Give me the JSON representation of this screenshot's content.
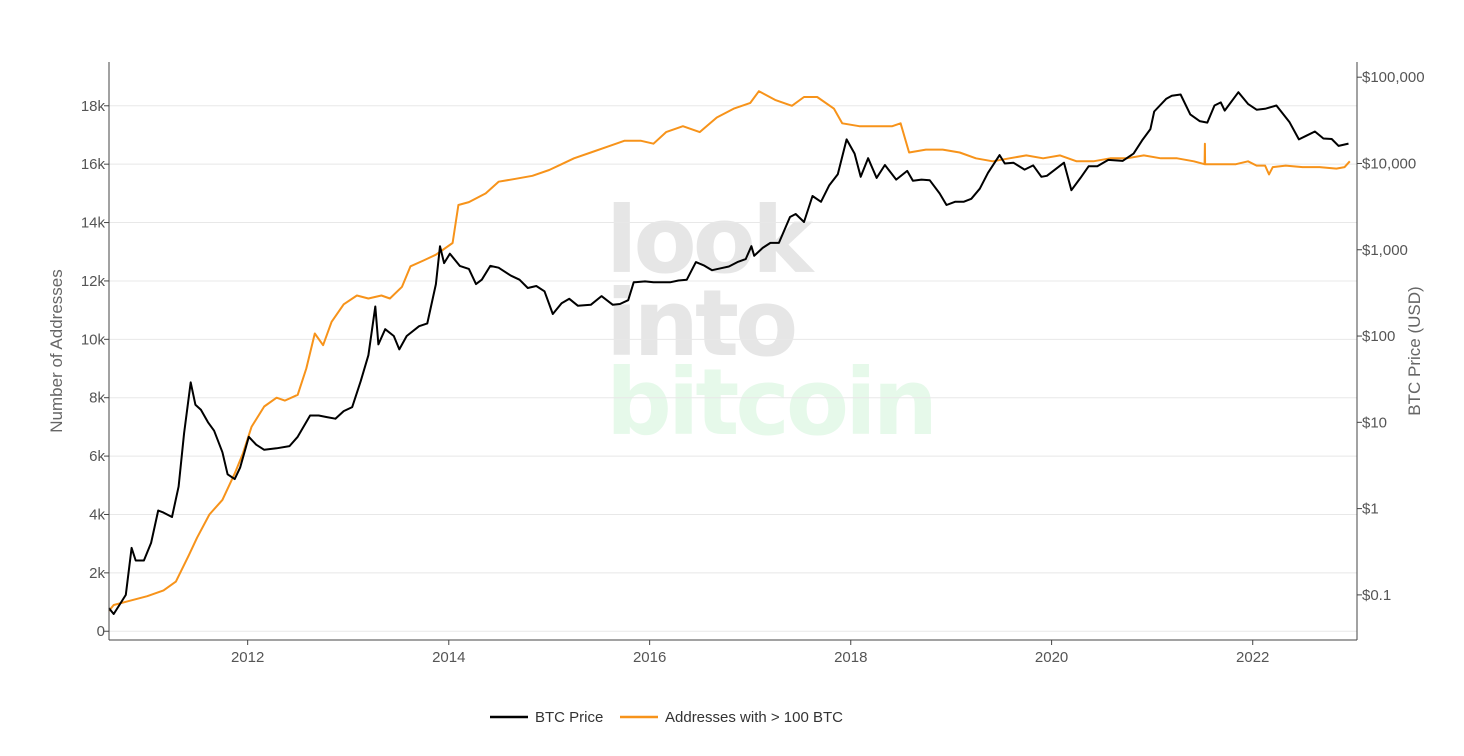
{
  "watermark": {
    "line1": "look",
    "line2": "into",
    "line3": "bitcoin"
  },
  "chart_data": {
    "type": "line",
    "title": "",
    "xlabel": "",
    "ylabel_left": "Number of Addresses",
    "ylabel_right": "BTC Price (USD)",
    "x_ticks": [
      "2012",
      "2014",
      "2016",
      "2018",
      "2020",
      "2022"
    ],
    "left_axis": {
      "ticks": [
        "0",
        "2k",
        "4k",
        "6k",
        "8k",
        "10k",
        "12k",
        "14k",
        "16k",
        "18k"
      ],
      "range": [
        -300,
        19500
      ]
    },
    "right_axis": {
      "scale": "log",
      "ticks": [
        "$0.1",
        "$1",
        "$10",
        "$100",
        "$1,000",
        "$10,000",
        "$100,000"
      ],
      "range": [
        0.03,
        150000
      ]
    },
    "x_range": [
      "2010-08-15",
      "2023-01-15"
    ],
    "grid": true,
    "legend_placement": "bottom-center",
    "series": [
      {
        "name": "BTC Price",
        "axis": "right",
        "color": "#000000",
        "points": [
          [
            "2010-08-15",
            0.07
          ],
          [
            "2010-09-01",
            0.06
          ],
          [
            "2010-10-15",
            0.1
          ],
          [
            "2010-11-05",
            0.35
          ],
          [
            "2010-11-20",
            0.25
          ],
          [
            "2010-12-20",
            0.25
          ],
          [
            "2011-01-15",
            0.4
          ],
          [
            "2011-02-10",
            0.95
          ],
          [
            "2011-03-01",
            0.9
          ],
          [
            "2011-04-01",
            0.8
          ],
          [
            "2011-04-25",
            1.8
          ],
          [
            "2011-05-15",
            7.5
          ],
          [
            "2011-06-08",
            29
          ],
          [
            "2011-06-25",
            16
          ],
          [
            "2011-07-15",
            14
          ],
          [
            "2011-08-10",
            10
          ],
          [
            "2011-09-01",
            8
          ],
          [
            "2011-10-01",
            4.5
          ],
          [
            "2011-10-20",
            2.5
          ],
          [
            "2011-11-15",
            2.2
          ],
          [
            "2011-12-05",
            3
          ],
          [
            "2012-01-05",
            6.8
          ],
          [
            "2012-02-01",
            5.5
          ],
          [
            "2012-03-01",
            4.8
          ],
          [
            "2012-04-15",
            5
          ],
          [
            "2012-06-01",
            5.3
          ],
          [
            "2012-07-01",
            6.8
          ],
          [
            "2012-08-15",
            12
          ],
          [
            "2012-09-15",
            12
          ],
          [
            "2012-10-15",
            11.5
          ],
          [
            "2012-11-15",
            11
          ],
          [
            "2012-12-15",
            13.5
          ],
          [
            "2013-01-15",
            15
          ],
          [
            "2013-02-15",
            30
          ],
          [
            "2013-03-15",
            60
          ],
          [
            "2013-04-09",
            220
          ],
          [
            "2013-04-20",
            80
          ],
          [
            "2013-05-15",
            120
          ],
          [
            "2013-06-15",
            100
          ],
          [
            "2013-07-05",
            70
          ],
          [
            "2013-08-01",
            100
          ],
          [
            "2013-09-15",
            130
          ],
          [
            "2013-10-15",
            140
          ],
          [
            "2013-11-15",
            400
          ],
          [
            "2013-11-30",
            1100
          ],
          [
            "2013-12-15",
            700
          ],
          [
            "2014-01-05",
            900
          ],
          [
            "2014-02-10",
            650
          ],
          [
            "2014-03-15",
            600
          ],
          [
            "2014-04-10",
            400
          ],
          [
            "2014-05-01",
            450
          ],
          [
            "2014-06-01",
            650
          ],
          [
            "2014-07-01",
            620
          ],
          [
            "2014-08-15",
            500
          ],
          [
            "2014-09-15",
            450
          ],
          [
            "2014-10-15",
            360
          ],
          [
            "2014-11-15",
            380
          ],
          [
            "2014-12-15",
            330
          ],
          [
            "2015-01-14",
            180
          ],
          [
            "2015-02-15",
            240
          ],
          [
            "2015-03-15",
            270
          ],
          [
            "2015-04-15",
            225
          ],
          [
            "2015-06-01",
            230
          ],
          [
            "2015-07-10",
            290
          ],
          [
            "2015-08-20",
            230
          ],
          [
            "2015-09-15",
            235
          ],
          [
            "2015-10-15",
            260
          ],
          [
            "2015-11-04",
            420
          ],
          [
            "2015-12-15",
            430
          ],
          [
            "2016-01-15",
            420
          ],
          [
            "2016-02-15",
            420
          ],
          [
            "2016-03-15",
            420
          ],
          [
            "2016-04-15",
            440
          ],
          [
            "2016-05-15",
            450
          ],
          [
            "2016-06-17",
            720
          ],
          [
            "2016-07-15",
            660
          ],
          [
            "2016-08-15",
            580
          ],
          [
            "2016-09-15",
            610
          ],
          [
            "2016-10-15",
            640
          ],
          [
            "2016-11-15",
            720
          ],
          [
            "2016-12-15",
            780
          ],
          [
            "2017-01-05",
            1100
          ],
          [
            "2017-01-15",
            850
          ],
          [
            "2017-02-15",
            1050
          ],
          [
            "2017-03-15",
            1200
          ],
          [
            "2017-04-15",
            1200
          ],
          [
            "2017-05-25",
            2400
          ],
          [
            "2017-06-15",
            2600
          ],
          [
            "2017-07-15",
            2100
          ],
          [
            "2017-08-15",
            4200
          ],
          [
            "2017-09-15",
            3600
          ],
          [
            "2017-10-15",
            5600
          ],
          [
            "2017-11-15",
            7500
          ],
          [
            "2017-12-17",
            19000
          ],
          [
            "2018-01-15",
            13000
          ],
          [
            "2018-02-06",
            7000
          ],
          [
            "2018-03-05",
            11500
          ],
          [
            "2018-04-05",
            6800
          ],
          [
            "2018-05-05",
            9600
          ],
          [
            "2018-06-15",
            6500
          ],
          [
            "2018-07-25",
            8200
          ],
          [
            "2018-08-15",
            6300
          ],
          [
            "2018-09-15",
            6500
          ],
          [
            "2018-10-15",
            6400
          ],
          [
            "2018-11-20",
            4500
          ],
          [
            "2018-12-15",
            3300
          ],
          [
            "2019-01-15",
            3600
          ],
          [
            "2019-02-15",
            3600
          ],
          [
            "2019-03-15",
            3900
          ],
          [
            "2019-04-15",
            5100
          ],
          [
            "2019-05-15",
            7800
          ],
          [
            "2019-06-26",
            12500
          ],
          [
            "2019-07-15",
            10000
          ],
          [
            "2019-08-15",
            10200
          ],
          [
            "2019-09-25",
            8500
          ],
          [
            "2019-10-26",
            9500
          ],
          [
            "2019-11-25",
            7000
          ],
          [
            "2019-12-15",
            7200
          ],
          [
            "2020-02-15",
            10200
          ],
          [
            "2020-03-13",
            4900
          ],
          [
            "2020-04-15",
            6800
          ],
          [
            "2020-05-15",
            9300
          ],
          [
            "2020-06-15",
            9300
          ],
          [
            "2020-07-25",
            11000
          ],
          [
            "2020-09-15",
            10700
          ],
          [
            "2020-10-25",
            13000
          ],
          [
            "2020-11-25",
            18500
          ],
          [
            "2020-12-25",
            25000
          ],
          [
            "2021-01-08",
            40000
          ],
          [
            "2021-02-20",
            56000
          ],
          [
            "2021-03-13",
            61000
          ],
          [
            "2021-04-14",
            63000
          ],
          [
            "2021-05-19",
            37000
          ],
          [
            "2021-06-22",
            31000
          ],
          [
            "2021-07-20",
            29800
          ],
          [
            "2021-08-15",
            47000
          ],
          [
            "2021-09-07",
            51000
          ],
          [
            "2021-09-21",
            41000
          ],
          [
            "2021-11-10",
            67000
          ],
          [
            "2021-12-15",
            49000
          ],
          [
            "2022-01-15",
            42000
          ],
          [
            "2022-02-15",
            43000
          ],
          [
            "2022-03-28",
            47000
          ],
          [
            "2022-05-15",
            30000
          ],
          [
            "2022-06-18",
            19000
          ],
          [
            "2022-07-15",
            21000
          ],
          [
            "2022-08-15",
            23500
          ],
          [
            "2022-09-15",
            19500
          ],
          [
            "2022-10-15",
            19200
          ],
          [
            "2022-11-09",
            16000
          ],
          [
            "2022-12-15",
            17000
          ]
        ]
      },
      {
        "name": "Addresses with > 100 BTC",
        "axis": "left",
        "color": "#f7931a",
        "points": [
          [
            "2010-08-15",
            700
          ],
          [
            "2010-09-01",
            900
          ],
          [
            "2011-01-01",
            1200
          ],
          [
            "2011-03-01",
            1400
          ],
          [
            "2011-04-15",
            1700
          ],
          [
            "2011-06-01",
            2600
          ],
          [
            "2011-07-01",
            3200
          ],
          [
            "2011-08-15",
            4000
          ],
          [
            "2011-10-01",
            4500
          ],
          [
            "2011-11-15",
            5400
          ],
          [
            "2011-12-15",
            6100
          ],
          [
            "2012-01-15",
            7000
          ],
          [
            "2012-03-01",
            7700
          ],
          [
            "2012-04-15",
            8000
          ],
          [
            "2012-05-15",
            7900
          ],
          [
            "2012-07-01",
            8100
          ],
          [
            "2012-08-01",
            9000
          ],
          [
            "2012-09-01",
            10200
          ],
          [
            "2012-10-01",
            9800
          ],
          [
            "2012-11-01",
            10600
          ],
          [
            "2012-12-15",
            11200
          ],
          [
            "2013-02-01",
            11500
          ],
          [
            "2013-03-15",
            11400
          ],
          [
            "2013-05-01",
            11500
          ],
          [
            "2013-06-01",
            11400
          ],
          [
            "2013-07-15",
            11800
          ],
          [
            "2013-08-15",
            12500
          ],
          [
            "2013-10-01",
            12700
          ],
          [
            "2013-11-15",
            12900
          ],
          [
            "2014-01-15",
            13300
          ],
          [
            "2014-02-05",
            14600
          ],
          [
            "2014-03-15",
            14700
          ],
          [
            "2014-05-15",
            15000
          ],
          [
            "2014-07-01",
            15400
          ],
          [
            "2014-09-01",
            15500
          ],
          [
            "2014-11-01",
            15600
          ],
          [
            "2015-01-01",
            15800
          ],
          [
            "2015-02-15",
            16000
          ],
          [
            "2015-04-01",
            16200
          ],
          [
            "2015-06-01",
            16400
          ],
          [
            "2015-08-01",
            16600
          ],
          [
            "2015-10-01",
            16800
          ],
          [
            "2015-12-01",
            16800
          ],
          [
            "2016-01-15",
            16700
          ],
          [
            "2016-03-01",
            17100
          ],
          [
            "2016-05-01",
            17300
          ],
          [
            "2016-07-01",
            17100
          ],
          [
            "2016-09-01",
            17600
          ],
          [
            "2016-11-01",
            17900
          ],
          [
            "2017-01-01",
            18100
          ],
          [
            "2017-02-01",
            18500
          ],
          [
            "2017-04-01",
            18200
          ],
          [
            "2017-06-01",
            18000
          ],
          [
            "2017-07-15",
            18300
          ],
          [
            "2017-09-01",
            18300
          ],
          [
            "2017-11-01",
            17900
          ],
          [
            "2017-12-01",
            17400
          ],
          [
            "2018-02-01",
            17300
          ],
          [
            "2018-04-01",
            17300
          ],
          [
            "2018-06-01",
            17300
          ],
          [
            "2018-07-01",
            17400
          ],
          [
            "2018-08-01",
            16400
          ],
          [
            "2018-10-01",
            16500
          ],
          [
            "2018-12-01",
            16500
          ],
          [
            "2019-02-01",
            16400
          ],
          [
            "2019-04-01",
            16200
          ],
          [
            "2019-06-01",
            16100
          ],
          [
            "2019-08-01",
            16200
          ],
          [
            "2019-10-01",
            16300
          ],
          [
            "2019-12-01",
            16200
          ],
          [
            "2020-02-01",
            16300
          ],
          [
            "2020-04-01",
            16100
          ],
          [
            "2020-06-01",
            16100
          ],
          [
            "2020-08-01",
            16200
          ],
          [
            "2020-10-01",
            16200
          ],
          [
            "2020-12-01",
            16300
          ],
          [
            "2021-02-01",
            16200
          ],
          [
            "2021-04-01",
            16200
          ],
          [
            "2021-06-01",
            16100
          ],
          [
            "2021-07-10",
            16000
          ],
          [
            "2021-07-11",
            16700
          ],
          [
            "2021-07-12",
            16000
          ],
          [
            "2021-09-01",
            16000
          ],
          [
            "2021-11-01",
            16000
          ],
          [
            "2021-12-15",
            16100
          ],
          [
            "2022-01-15",
            15950
          ],
          [
            "2022-02-15",
            15950
          ],
          [
            "2022-03-01",
            15650
          ],
          [
            "2022-03-15",
            15900
          ],
          [
            "2022-05-01",
            15950
          ],
          [
            "2022-07-01",
            15900
          ],
          [
            "2022-09-01",
            15900
          ],
          [
            "2022-11-01",
            15850
          ],
          [
            "2022-12-01",
            15900
          ],
          [
            "2022-12-20",
            16100
          ]
        ]
      }
    ]
  }
}
